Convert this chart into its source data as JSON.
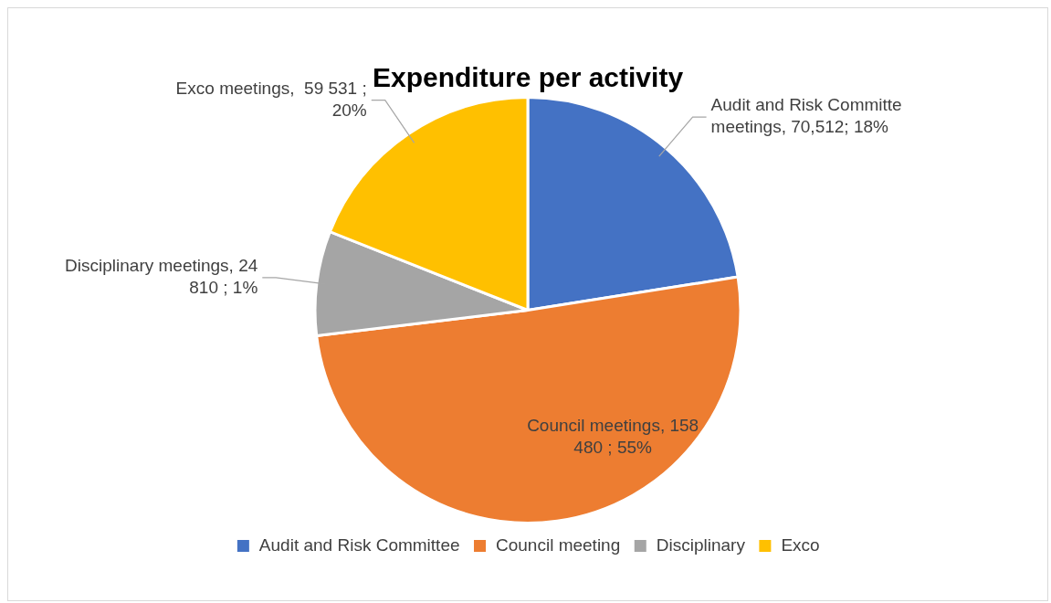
{
  "chart_data": {
    "type": "pie",
    "title": "Expenditure per activity",
    "categories": [
      "Audit and Risk Committee",
      "Council meeting",
      "Disciplinary",
      "Exco"
    ],
    "values": [
      70512,
      158480,
      24810,
      59531
    ],
    "colors": [
      "#4472c4",
      "#ed7d31",
      "#a5a5a5",
      "#ffc000"
    ],
    "value_labels": [
      "Audit and Risk Committe meetings, 70,512; 18%",
      "Council meetings, 158 480 ; 55%",
      "Disciplinary meetings, 24 810 ; 1%",
      "Exco meetings,  59 531 ; 20%"
    ],
    "legend": "bottom"
  }
}
